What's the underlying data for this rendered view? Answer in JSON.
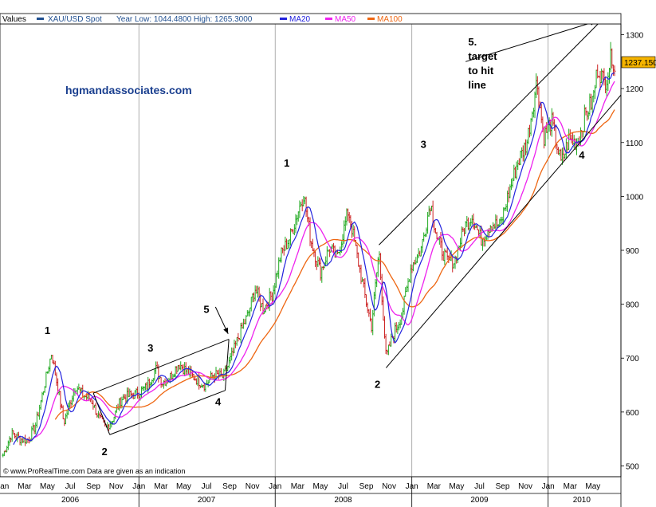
{
  "header": {
    "values_label": "Values",
    "series_label": "XAU/USD Spot",
    "range_label": "Year Low: 1044.4800 High: 1265.3000",
    "ma20_label": "MA20",
    "ma50_label": "MA50",
    "ma100_label": "MA100"
  },
  "watermark": "hgmandassociates.com",
  "footer_note": "© www.ProRealTime.com Data are given as an indication",
  "last_price_label": "1237.150",
  "colors": {
    "price_up": "#22aa22",
    "price_down": "#cc2222",
    "ma20": "#2222dd",
    "ma50": "#ee22ee",
    "ma100": "#ee6611",
    "watermark": "#1a3f8f",
    "price_box": "#f5b400"
  },
  "annotations": [
    {
      "id": "w1-2006",
      "text": "1",
      "date": "2006-05",
      "price": 745
    },
    {
      "id": "w2-2006",
      "text": "2",
      "date": "2006-10",
      "price": 520
    },
    {
      "id": "w3-2006",
      "text": "3",
      "date": "2007-02",
      "price": 712
    },
    {
      "id": "w4-2007",
      "text": "4",
      "date": "2007-08",
      "price": 612
    },
    {
      "id": "w5-2007",
      "text": "5",
      "date": "2007-07",
      "price": 784
    },
    {
      "id": "w1-2008",
      "text": "1",
      "date": "2008-02",
      "price": 1055
    },
    {
      "id": "w2-2008",
      "text": "2",
      "date": "2008-10",
      "price": 645
    },
    {
      "id": "w3-2009",
      "text": "3",
      "date": "2009-02",
      "price": 1090
    },
    {
      "id": "w4-2010",
      "text": "4",
      "date": "2010-04",
      "price": 1070
    }
  ],
  "target_note": {
    "lines": [
      "5.",
      "target",
      "to hit",
      "line"
    ],
    "date": "2009-06",
    "price": 1280
  },
  "chart_data": {
    "type": "candlestick",
    "title": "",
    "series": [
      {
        "name": "XAU/USD Spot",
        "style": "ohlc-bars"
      },
      {
        "name": "MA20"
      },
      {
        "name": "MA50"
      },
      {
        "name": "MA100"
      }
    ],
    "xlim": [
      "2005-12-25",
      "2010-07-15"
    ],
    "ylim": [
      480,
      1320
    ],
    "y_ticks": [
      500,
      600,
      700,
      800,
      900,
      1000,
      1100,
      1200,
      1300
    ],
    "month_labels": [
      "Jan",
      "Mar",
      "May",
      "Jul",
      "Sep",
      "Nov",
      "Jan",
      "Mar",
      "May",
      "Jul",
      "Sep",
      "Nov",
      "Jan",
      "Mar",
      "May",
      "Jul",
      "Sep",
      "Nov",
      "Jan",
      "Mar",
      "May",
      "Jul",
      "Sep",
      "Nov",
      "Jan",
      "Mar",
      "May"
    ],
    "month_dates": [
      "2006-01",
      "2006-03",
      "2006-05",
      "2006-07",
      "2006-09",
      "2006-11",
      "2007-01",
      "2007-03",
      "2007-05",
      "2007-07",
      "2007-09",
      "2007-11",
      "2008-01",
      "2008-03",
      "2008-05",
      "2008-07",
      "2008-09",
      "2008-11",
      "2009-01",
      "2009-03",
      "2009-05",
      "2009-07",
      "2009-09",
      "2009-11",
      "2010-01",
      "2010-03",
      "2010-05"
    ],
    "year_labels": [
      {
        "year": "2006",
        "date": "2006-07"
      },
      {
        "year": "2007",
        "date": "2007-07"
      },
      {
        "year": "2008",
        "date": "2008-07"
      },
      {
        "year": "2009",
        "date": "2009-07"
      },
      {
        "year": "2010",
        "date": "2010-04"
      }
    ],
    "year_dividers": [
      "2007-01-01",
      "2008-01-01",
      "2009-01-01",
      "2010-01-01"
    ],
    "price_path": [
      {
        "d": "2006-01-02",
        "v": 520
      },
      {
        "d": "2006-01-25",
        "v": 560
      },
      {
        "d": "2006-02-15",
        "v": 550
      },
      {
        "d": "2006-03-10",
        "v": 548
      },
      {
        "d": "2006-03-30",
        "v": 575
      },
      {
        "d": "2006-04-20",
        "v": 640
      },
      {
        "d": "2006-05-12",
        "v": 710
      },
      {
        "d": "2006-05-25",
        "v": 660
      },
      {
        "d": "2006-06-14",
        "v": 580
      },
      {
        "d": "2006-06-30",
        "v": 615
      },
      {
        "d": "2006-07-15",
        "v": 650
      },
      {
        "d": "2006-08-05",
        "v": 630
      },
      {
        "d": "2006-08-25",
        "v": 625
      },
      {
        "d": "2006-09-15",
        "v": 590
      },
      {
        "d": "2006-10-05",
        "v": 570
      },
      {
        "d": "2006-10-25",
        "v": 590
      },
      {
        "d": "2006-11-15",
        "v": 625
      },
      {
        "d": "2006-12-05",
        "v": 630
      },
      {
        "d": "2006-12-28",
        "v": 635
      },
      {
        "d": "2007-01-20",
        "v": 645
      },
      {
        "d": "2007-02-15",
        "v": 680
      },
      {
        "d": "2007-03-05",
        "v": 655
      },
      {
        "d": "2007-03-25",
        "v": 665
      },
      {
        "d": "2007-04-18",
        "v": 690
      },
      {
        "d": "2007-05-10",
        "v": 675
      },
      {
        "d": "2007-06-05",
        "v": 660
      },
      {
        "d": "2007-06-28",
        "v": 650
      },
      {
        "d": "2007-07-20",
        "v": 670
      },
      {
        "d": "2007-08-15",
        "v": 665
      },
      {
        "d": "2007-09-05",
        "v": 700
      },
      {
        "d": "2007-09-25",
        "v": 740
      },
      {
        "d": "2007-10-20",
        "v": 780
      },
      {
        "d": "2007-11-08",
        "v": 830
      },
      {
        "d": "2007-11-30",
        "v": 790
      },
      {
        "d": "2007-12-25",
        "v": 820
      },
      {
        "d": "2008-01-15",
        "v": 890
      },
      {
        "d": "2008-02-10",
        "v": 925
      },
      {
        "d": "2008-03-17",
        "v": 1005
      },
      {
        "d": "2008-04-05",
        "v": 920
      },
      {
        "d": "2008-05-01",
        "v": 860
      },
      {
        "d": "2008-05-25",
        "v": 905
      },
      {
        "d": "2008-06-15",
        "v": 885
      },
      {
        "d": "2008-07-15",
        "v": 975
      },
      {
        "d": "2008-08-10",
        "v": 880
      },
      {
        "d": "2008-08-30",
        "v": 810
      },
      {
        "d": "2008-09-15",
        "v": 760
      },
      {
        "d": "2008-10-05",
        "v": 900
      },
      {
        "d": "2008-10-24",
        "v": 700
      },
      {
        "d": "2008-11-10",
        "v": 740
      },
      {
        "d": "2008-12-05",
        "v": 780
      },
      {
        "d": "2008-12-30",
        "v": 870
      },
      {
        "d": "2009-01-25",
        "v": 900
      },
      {
        "d": "2009-02-20",
        "v": 990
      },
      {
        "d": "2009-03-10",
        "v": 920
      },
      {
        "d": "2009-04-05",
        "v": 880
      },
      {
        "d": "2009-04-25",
        "v": 880
      },
      {
        "d": "2009-05-20",
        "v": 940
      },
      {
        "d": "2009-06-10",
        "v": 965
      },
      {
        "d": "2009-07-05",
        "v": 920
      },
      {
        "d": "2009-08-01",
        "v": 950
      },
      {
        "d": "2009-08-25",
        "v": 945
      },
      {
        "d": "2009-09-15",
        "v": 1000
      },
      {
        "d": "2009-10-10",
        "v": 1060
      },
      {
        "d": "2009-11-05",
        "v": 1100
      },
      {
        "d": "2009-12-02",
        "v": 1215
      },
      {
        "d": "2009-12-20",
        "v": 1110
      },
      {
        "d": "2010-01-10",
        "v": 1140
      },
      {
        "d": "2010-02-05",
        "v": 1060
      },
      {
        "d": "2010-02-25",
        "v": 1105
      },
      {
        "d": "2010-03-20",
        "v": 1100
      },
      {
        "d": "2010-04-10",
        "v": 1150
      },
      {
        "d": "2010-05-01",
        "v": 1180
      },
      {
        "d": "2010-05-14",
        "v": 1240
      },
      {
        "d": "2010-06-01",
        "v": 1210
      },
      {
        "d": "2010-06-21",
        "v": 1262
      },
      {
        "d": "2010-06-30",
        "v": 1237
      }
    ],
    "trend_lines": [
      {
        "id": "channel-2006-lower",
        "from": {
          "d": "2006-10-15",
          "v": 558
        },
        "to": {
          "d": "2007-08-20",
          "v": 640
        }
      },
      {
        "id": "channel-2006-upper",
        "from": {
          "d": "2006-09-01",
          "v": 635
        },
        "to": {
          "d": "2007-08-30",
          "v": 735
        }
      },
      {
        "id": "channel-2006-left",
        "from": {
          "d": "2006-09-01",
          "v": 635
        },
        "to": {
          "d": "2006-10-15",
          "v": 558
        }
      },
      {
        "id": "channel-2006-right",
        "from": {
          "d": "2007-08-20",
          "v": 640
        },
        "to": {
          "d": "2007-08-30",
          "v": 735
        }
      },
      {
        "id": "channel-2008-lower",
        "from": {
          "d": "2008-10-24",
          "v": 682
        },
        "to": {
          "d": "2010-07-15",
          "v": 1188
        }
      },
      {
        "id": "channel-2008-upper",
        "from": {
          "d": "2008-10-05",
          "v": 910
        },
        "to": {
          "d": "2010-06-05",
          "v": 1335
        }
      }
    ],
    "arrows": [
      {
        "id": "arrow-wave5-2007",
        "from": {
          "d": "2007-07-25",
          "v": 795
        },
        "to": {
          "d": "2007-08-28",
          "v": 745
        }
      },
      {
        "id": "arrow-target",
        "from": {
          "d": "2009-05-25",
          "v": 1250
        },
        "to": {
          "d": "2010-05-10",
          "v": 1325
        }
      }
    ]
  }
}
